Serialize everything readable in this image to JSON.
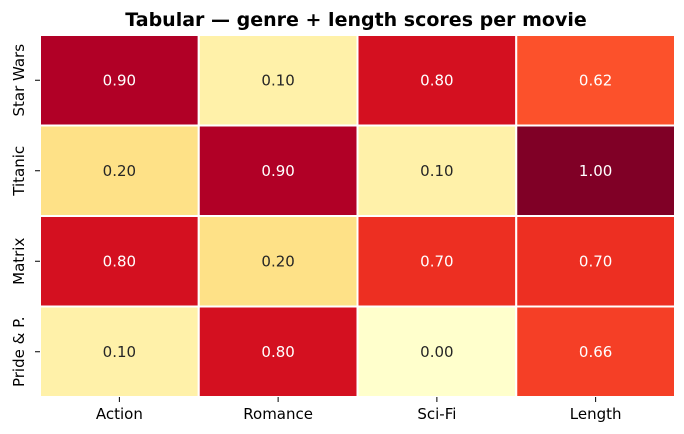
{
  "chart_data": {
    "type": "heatmap",
    "title": "Tabular — genre + length scores per movie",
    "xlabel": "",
    "ylabel": "",
    "columns": [
      "Action",
      "Romance",
      "Sci-Fi",
      "Length"
    ],
    "rows": [
      "Star Wars",
      "Titanic",
      "Matrix",
      "Pride & P."
    ],
    "values": [
      [
        0.9,
        0.1,
        0.8,
        0.62
      ],
      [
        0.2,
        0.9,
        0.1,
        1.0
      ],
      [
        0.8,
        0.2,
        0.7,
        0.7
      ],
      [
        0.1,
        0.8,
        0.0,
        0.66
      ]
    ],
    "value_format": "2 decimals",
    "colormap": "YlOrRd",
    "vmin": 0,
    "vmax": 1,
    "grid_line_color": "#ffffff",
    "colorbar": false
  }
}
